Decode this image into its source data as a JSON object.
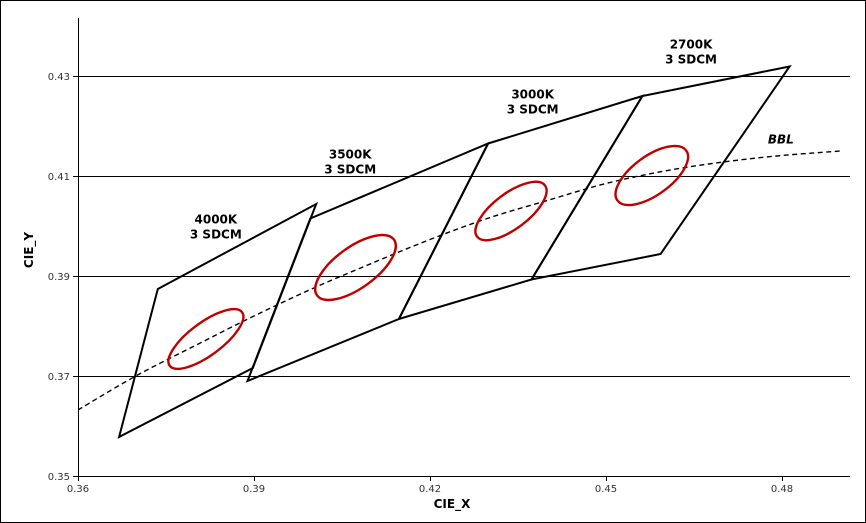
{
  "chart_data": {
    "type": "line",
    "title": "",
    "xlabel": "CIE_X",
    "ylabel": "CIE_Y",
    "xlim": [
      0.36,
      0.49
    ],
    "ylim": [
      0.35,
      0.44
    ],
    "x_ticks": [
      0.36,
      0.39,
      0.42,
      0.45,
      0.48
    ],
    "y_ticks": [
      0.35,
      0.37,
      0.39,
      0.41,
      0.43
    ],
    "x_tick_labels": [
      "0.36",
      "0.39",
      "0.42",
      "0.45",
      "0.48"
    ],
    "y_tick_labels": [
      "0.35",
      "0.37",
      "0.39",
      "0.41",
      "0.43"
    ],
    "grid": "horizontal",
    "quadrangles": [
      {
        "name": "4000K",
        "label_lines": [
          "4000K",
          "3 SDCM"
        ],
        "label_at": [
          0.3835,
          0.4005
        ],
        "points": [
          [
            0.367,
            0.3578
          ],
          [
            0.3736,
            0.3874
          ],
          [
            0.4006,
            0.4044
          ],
          [
            0.3898,
            0.3716
          ]
        ]
      },
      {
        "name": "3500K",
        "label_lines": [
          "3500K",
          "3 SDCM"
        ],
        "label_at": [
          0.4064,
          0.4135
        ],
        "points": [
          [
            0.3889,
            0.369
          ],
          [
            0.3996,
            0.4015
          ],
          [
            0.4299,
            0.4165
          ],
          [
            0.4147,
            0.3814
          ]
        ]
      },
      {
        "name": "3000K",
        "label_lines": [
          "3000K",
          "3 SDCM"
        ],
        "label_at": [
          0.4375,
          0.4255
        ],
        "points": [
          [
            0.4147,
            0.3814
          ],
          [
            0.4299,
            0.4165
          ],
          [
            0.4562,
            0.426
          ],
          [
            0.4373,
            0.3893
          ]
        ]
      },
      {
        "name": "2700K",
        "label_lines": [
          "2700K",
          "3 SDCM"
        ],
        "label_at": [
          0.4645,
          0.4355
        ],
        "points": [
          [
            0.4373,
            0.3893
          ],
          [
            0.4562,
            0.426
          ],
          [
            0.4813,
            0.4319
          ],
          [
            0.4593,
            0.3944
          ]
        ]
      }
    ],
    "ellipses": [
      {
        "name": "4000K",
        "cx": 0.3818,
        "cy": 0.3774,
        "rx": 0.0028,
        "ry": 0.009,
        "angle_deg": 53.5
      },
      {
        "name": "3500K",
        "cx": 0.4073,
        "cy": 0.3917,
        "rx": 0.0035,
        "ry": 0.0095,
        "angle_deg": 54
      },
      {
        "name": "3000K",
        "cx": 0.4338,
        "cy": 0.403,
        "rx": 0.003,
        "ry": 0.0085,
        "angle_deg": 53
      },
      {
        "name": "2700K",
        "cx": 0.4578,
        "cy": 0.4101,
        "rx": 0.0033,
        "ry": 0.0085,
        "angle_deg": 54
      }
    ],
    "bbl": {
      "name": "BBL",
      "x": [
        0.36,
        0.37,
        0.38,
        0.39,
        0.4,
        0.41,
        0.42,
        0.43,
        0.44,
        0.45,
        0.46,
        0.47,
        0.48,
        0.49
      ],
      "y": [
        0.3632,
        0.3701,
        0.3761,
        0.382,
        0.3875,
        0.3925,
        0.3973,
        0.4016,
        0.4051,
        0.4085,
        0.411,
        0.4128,
        0.4141,
        0.415
      ],
      "label": "BBL",
      "label_at": [
        0.4798,
        0.4165
      ]
    }
  }
}
